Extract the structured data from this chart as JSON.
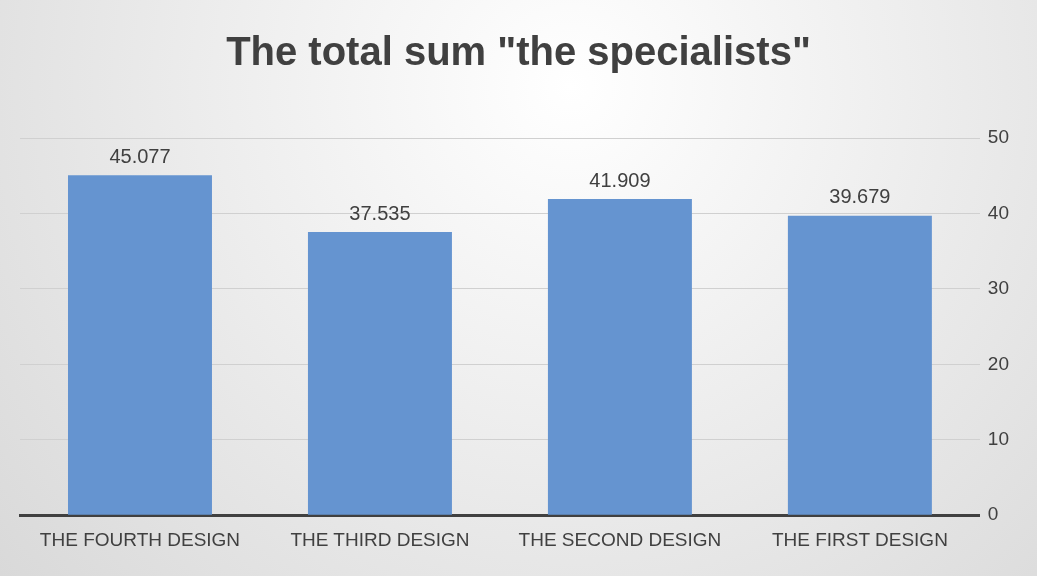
{
  "chart_data": {
    "type": "bar",
    "title": "The total sum \"the specialists\"",
    "categories": [
      "THE FOURTH DESIGN",
      "THE THIRD DESIGN",
      "THE SECOND DESIGN",
      "THE FIRST DESIGN"
    ],
    "values": [
      45.077,
      37.535,
      41.909,
      39.679
    ],
    "color": "#6594d0",
    "ylim": [
      0,
      50
    ],
    "yticks": [
      0,
      10,
      20,
      30,
      40,
      50
    ],
    "grid": "y",
    "data_labels": true,
    "legend": false
  }
}
